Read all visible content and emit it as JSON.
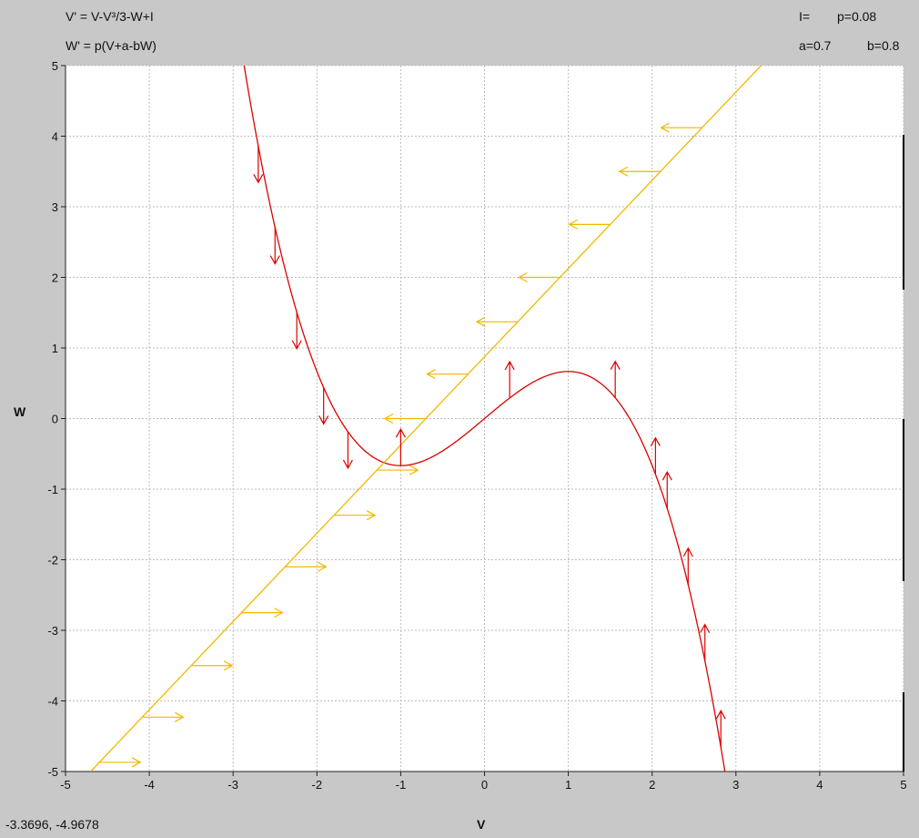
{
  "header": {
    "equation_v": "V' = V-V³/3-W+I",
    "equation_w": "W' = p(V+a-bW)",
    "param_i": "I=",
    "param_p": "p=0.08",
    "param_a": "a=0.7",
    "param_b": "b=0.8"
  },
  "status": {
    "cursor_coords": "-3.3696,  -4.9678"
  },
  "chart_data": {
    "type": "line",
    "xlabel": "V",
    "ylabel": "W",
    "xlim": [
      -5,
      5
    ],
    "ylim": [
      -5,
      5
    ],
    "xticks": [
      "-5",
      "-4",
      "-3",
      "-2",
      "-1",
      "0",
      "1",
      "2",
      "3",
      "4",
      "5"
    ],
    "yticks": [
      "5",
      "4",
      "3",
      "2",
      "1",
      "0",
      "-1",
      "-2",
      "-3",
      "-4",
      "-5"
    ],
    "grid": true,
    "colors": {
      "v_nullcline": "#dd0000",
      "w_nullcline": "#f0b800",
      "grid": "#bdbdbd",
      "plot_bg": "#ffffff",
      "frame_bg": "#c8c8c8"
    },
    "series": [
      {
        "x_range": [
          -2.87,
          2.88
        ],
        "formula": "W = V - V^3/3"
      },
      {
        "x_range": [
          -4.7,
          3.32
        ],
        "formula": "W = (V + 0.7)/0.8"
      }
    ],
    "v_nullcline_arrows": [
      {
        "v": -2.7,
        "direction": "down"
      },
      {
        "v": -2.5,
        "direction": "down"
      },
      {
        "v": -2.24,
        "direction": "down"
      },
      {
        "v": -1.92,
        "direction": "down"
      },
      {
        "v": -1.63,
        "direction": "down"
      },
      {
        "v": -1.0,
        "direction": "up"
      },
      {
        "v": 0.3,
        "direction": "up"
      },
      {
        "v": 1.56,
        "direction": "up"
      },
      {
        "v": 2.04,
        "direction": "up"
      },
      {
        "v": 2.18,
        "direction": "up"
      },
      {
        "v": 2.43,
        "direction": "up"
      },
      {
        "v": 2.63,
        "direction": "up"
      },
      {
        "v": 2.82,
        "direction": "up"
      }
    ],
    "w_nullcline_arrows": [
      {
        "w": 4.12,
        "direction": "left"
      },
      {
        "w": 3.5,
        "direction": "left"
      },
      {
        "w": 2.75,
        "direction": "left"
      },
      {
        "w": 2.0,
        "direction": "left"
      },
      {
        "w": 1.37,
        "direction": "left"
      },
      {
        "w": 0.63,
        "direction": "left"
      },
      {
        "w": 0.0,
        "direction": "left"
      },
      {
        "w": -0.73,
        "direction": "right"
      },
      {
        "w": -1.37,
        "direction": "right"
      },
      {
        "w": -2.1,
        "direction": "right"
      },
      {
        "w": -2.75,
        "direction": "right"
      },
      {
        "w": -3.5,
        "direction": "right"
      },
      {
        "w": -4.23,
        "direction": "right"
      },
      {
        "w": -4.87,
        "direction": "right"
      }
    ]
  }
}
